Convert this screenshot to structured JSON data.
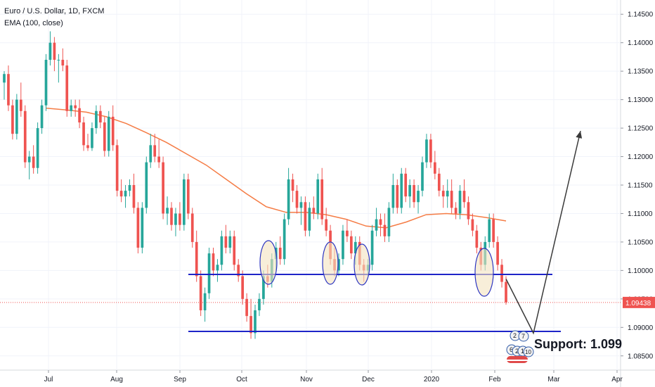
{
  "header": {
    "symbol_line": "Euro / U.S. Dollar, 1D, FXCM",
    "indicator_line": "EMA (100, close)"
  },
  "annotation": {
    "support_label": "Support: 1.099"
  },
  "price_tag": "1.09438",
  "event_badges": [
    "2",
    "7",
    "6",
    "2",
    "1",
    "10"
  ],
  "colors": {
    "up": "#26a69a",
    "down": "#ef5350",
    "ema": "#f57c45",
    "support_line": "#1e24c8",
    "arrow": "#3a3a3a",
    "ellipse_stroke": "#2c35c2",
    "ellipse_fill": "#f3e2c0",
    "price_tag": "#ef5350"
  },
  "chart_data": {
    "type": "candlestick",
    "title": "Euro / U.S. Dollar, 1D, FXCM",
    "x_ticks": [
      "Jul",
      "Aug",
      "Sep",
      "Oct",
      "Nov",
      "Dec",
      "2020",
      "Feb",
      "Mar",
      "Apr"
    ],
    "y_ticks": [
      "1.14500",
      "1.14000",
      "1.13500",
      "1.13000",
      "1.12500",
      "1.12000",
      "1.11500",
      "1.11000",
      "1.10500",
      "1.10000",
      "1.09500",
      "1.09000",
      "1.08500"
    ],
    "ylim": [
      1.0825,
      1.1475
    ],
    "grid": true,
    "last_price": 1.09438,
    "ema_series": {
      "name": "EMA (100, close)",
      "values": [
        1.1285,
        1.1282,
        1.1278,
        1.127,
        1.1258,
        1.1242,
        1.1225,
        1.1205,
        1.1185,
        1.116,
        1.1135,
        1.1112,
        1.1102,
        1.1102,
        1.1098,
        1.109,
        1.1078,
        1.1075,
        1.1085,
        1.1098,
        1.11,
        1.1098,
        1.1093,
        1.1087
      ]
    },
    "support_levels": [
      {
        "label": "upper",
        "value": 1.0993
      },
      {
        "label": "lower",
        "value": 1.0893
      }
    ],
    "projection": {
      "from": 1.0985,
      "low": 1.089,
      "target": 1.1245
    },
    "candles_ohlc": [
      [
        1.133,
        1.135,
        1.13,
        1.1345
      ],
      [
        1.1345,
        1.136,
        1.128,
        1.129
      ],
      [
        1.129,
        1.13,
        1.123,
        1.124
      ],
      [
        1.124,
        1.131,
        1.123,
        1.13
      ],
      [
        1.13,
        1.133,
        1.127,
        1.128
      ],
      [
        1.128,
        1.129,
        1.118,
        1.119
      ],
      [
        1.119,
        1.121,
        1.116,
        1.12
      ],
      [
        1.12,
        1.122,
        1.117,
        1.118
      ],
      [
        1.118,
        1.126,
        1.117,
        1.125
      ],
      [
        1.125,
        1.13,
        1.124,
        1.129
      ],
      [
        1.129,
        1.138,
        1.128,
        1.137
      ],
      [
        1.137,
        1.142,
        1.136,
        1.14
      ],
      [
        1.14,
        1.141,
        1.135,
        1.137
      ],
      [
        1.137,
        1.138,
        1.133,
        1.137
      ],
      [
        1.137,
        1.139,
        1.135,
        1.136
      ],
      [
        1.136,
        1.137,
        1.127,
        1.128
      ],
      [
        1.128,
        1.13,
        1.127,
        1.129
      ],
      [
        1.129,
        1.13,
        1.127,
        1.1285
      ],
      [
        1.1285,
        1.13,
        1.125,
        1.126
      ],
      [
        1.126,
        1.127,
        1.121,
        1.122
      ],
      [
        1.122,
        1.124,
        1.121,
        1.1215
      ],
      [
        1.1215,
        1.126,
        1.121,
        1.125
      ],
      [
        1.125,
        1.129,
        1.124,
        1.128
      ],
      [
        1.128,
        1.129,
        1.125,
        1.126
      ],
      [
        1.126,
        1.127,
        1.12,
        1.121
      ],
      [
        1.121,
        1.128,
        1.12,
        1.127
      ],
      [
        1.127,
        1.129,
        1.121,
        1.122
      ],
      [
        1.122,
        1.123,
        1.113,
        1.114
      ],
      [
        1.114,
        1.116,
        1.112,
        1.113
      ],
      [
        1.113,
        1.115,
        1.111,
        1.114
      ],
      [
        1.114,
        1.116,
        1.113,
        1.115
      ],
      [
        1.115,
        1.117,
        1.11,
        1.111
      ],
      [
        1.111,
        1.112,
        1.103,
        1.104
      ],
      [
        1.104,
        1.112,
        1.103,
        1.111
      ],
      [
        1.111,
        1.12,
        1.11,
        1.119
      ],
      [
        1.119,
        1.124,
        1.118,
        1.122
      ],
      [
        1.122,
        1.124,
        1.119,
        1.12
      ],
      [
        1.12,
        1.123,
        1.118,
        1.119
      ],
      [
        1.119,
        1.12,
        1.109,
        1.11
      ],
      [
        1.11,
        1.113,
        1.108,
        1.111
      ],
      [
        1.111,
        1.112,
        1.107,
        1.108
      ],
      [
        1.108,
        1.111,
        1.106,
        1.11
      ],
      [
        1.11,
        1.112,
        1.107,
        1.108
      ],
      [
        1.108,
        1.117,
        1.107,
        1.116
      ],
      [
        1.116,
        1.117,
        1.109,
        1.11
      ],
      [
        1.11,
        1.111,
        1.104,
        1.105
      ],
      [
        1.105,
        1.107,
        1.098,
        1.099
      ],
      [
        1.099,
        1.1,
        1.092,
        1.093
      ],
      [
        1.093,
        1.097,
        1.091,
        1.096
      ],
      [
        1.096,
        1.104,
        1.095,
        1.103
      ],
      [
        1.103,
        1.104,
        1.099,
        1.1
      ],
      [
        1.1,
        1.102,
        1.098,
        1.101
      ],
      [
        1.101,
        1.107,
        1.1,
        1.106
      ],
      [
        1.106,
        1.108,
        1.103,
        1.104
      ],
      [
        1.104,
        1.107,
        1.103,
        1.106
      ],
      [
        1.106,
        1.107,
        1.1,
        1.101
      ],
      [
        1.101,
        1.102,
        1.098,
        1.099
      ],
      [
        1.099,
        1.1,
        1.094,
        1.095
      ],
      [
        1.095,
        1.096,
        1.091,
        1.092
      ],
      [
        1.092,
        1.095,
        1.088,
        1.089
      ],
      [
        1.089,
        1.094,
        1.088,
        1.093
      ],
      [
        1.093,
        1.096,
        1.092,
        1.095
      ],
      [
        1.095,
        1.1,
        1.094,
        1.099
      ],
      [
        1.099,
        1.101,
        1.097,
        1.098
      ],
      [
        1.098,
        1.103,
        1.097,
        1.102
      ],
      [
        1.102,
        1.105,
        1.1,
        1.104
      ],
      [
        1.104,
        1.106,
        1.101,
        1.102
      ],
      [
        1.102,
        1.11,
        1.101,
        1.109
      ],
      [
        1.109,
        1.118,
        1.108,
        1.116
      ],
      [
        1.116,
        1.117,
        1.112,
        1.114
      ],
      [
        1.114,
        1.115,
        1.11,
        1.111
      ],
      [
        1.111,
        1.113,
        1.108,
        1.112
      ],
      [
        1.112,
        1.113,
        1.106,
        1.107
      ],
      [
        1.107,
        1.112,
        1.106,
        1.111
      ],
      [
        1.111,
        1.113,
        1.109,
        1.11
      ],
      [
        1.11,
        1.117,
        1.109,
        1.116
      ],
      [
        1.116,
        1.118,
        1.108,
        1.109
      ],
      [
        1.109,
        1.111,
        1.106,
        1.107
      ],
      [
        1.107,
        1.108,
        1.101,
        1.102
      ],
      [
        1.102,
        1.104,
        1.099,
        1.1
      ],
      [
        1.1,
        1.103,
        1.099,
        1.102
      ],
      [
        1.102,
        1.108,
        1.101,
        1.107
      ],
      [
        1.107,
        1.109,
        1.105,
        1.106
      ],
      [
        1.106,
        1.107,
        1.102,
        1.103
      ],
      [
        1.103,
        1.106,
        1.101,
        1.105
      ],
      [
        1.105,
        1.106,
        1.1,
        1.101
      ],
      [
        1.101,
        1.102,
        1.098,
        1.1
      ],
      [
        1.1,
        1.102,
        1.099,
        1.101
      ],
      [
        1.101,
        1.108,
        1.1,
        1.107
      ],
      [
        1.107,
        1.111,
        1.106,
        1.109
      ],
      [
        1.109,
        1.11,
        1.106,
        1.108
      ],
      [
        1.108,
        1.11,
        1.105,
        1.106
      ],
      [
        1.106,
        1.112,
        1.105,
        1.111
      ],
      [
        1.111,
        1.117,
        1.11,
        1.115
      ],
      [
        1.115,
        1.116,
        1.11,
        1.111
      ],
      [
        1.111,
        1.118,
        1.11,
        1.117
      ],
      [
        1.117,
        1.118,
        1.112,
        1.113
      ],
      [
        1.113,
        1.116,
        1.111,
        1.115
      ],
      [
        1.115,
        1.116,
        1.111,
        1.112
      ],
      [
        1.112,
        1.115,
        1.11,
        1.114
      ],
      [
        1.114,
        1.12,
        1.113,
        1.119
      ],
      [
        1.119,
        1.124,
        1.118,
        1.123
      ],
      [
        1.123,
        1.124,
        1.118,
        1.119
      ],
      [
        1.119,
        1.121,
        1.116,
        1.117
      ],
      [
        1.117,
        1.118,
        1.113,
        1.114
      ],
      [
        1.114,
        1.115,
        1.111,
        1.113
      ],
      [
        1.113,
        1.116,
        1.111,
        1.114
      ],
      [
        1.114,
        1.116,
        1.11,
        1.111
      ],
      [
        1.111,
        1.112,
        1.109,
        1.11
      ],
      [
        1.11,
        1.115,
        1.109,
        1.114
      ],
      [
        1.114,
        1.116,
        1.111,
        1.112
      ],
      [
        1.112,
        1.113,
        1.108,
        1.109
      ],
      [
        1.109,
        1.11,
        1.106,
        1.107
      ],
      [
        1.107,
        1.108,
        1.103,
        1.104
      ],
      [
        1.104,
        1.105,
        1.1,
        1.101
      ],
      [
        1.101,
        1.106,
        1.1,
        1.105
      ],
      [
        1.105,
        1.11,
        1.104,
        1.109
      ],
      [
        1.109,
        1.11,
        1.104,
        1.105
      ],
      [
        1.105,
        1.106,
        1.1,
        1.101
      ],
      [
        1.101,
        1.102,
        1.097,
        1.098
      ],
      [
        1.098,
        1.099,
        1.094,
        1.0944
      ]
    ]
  }
}
